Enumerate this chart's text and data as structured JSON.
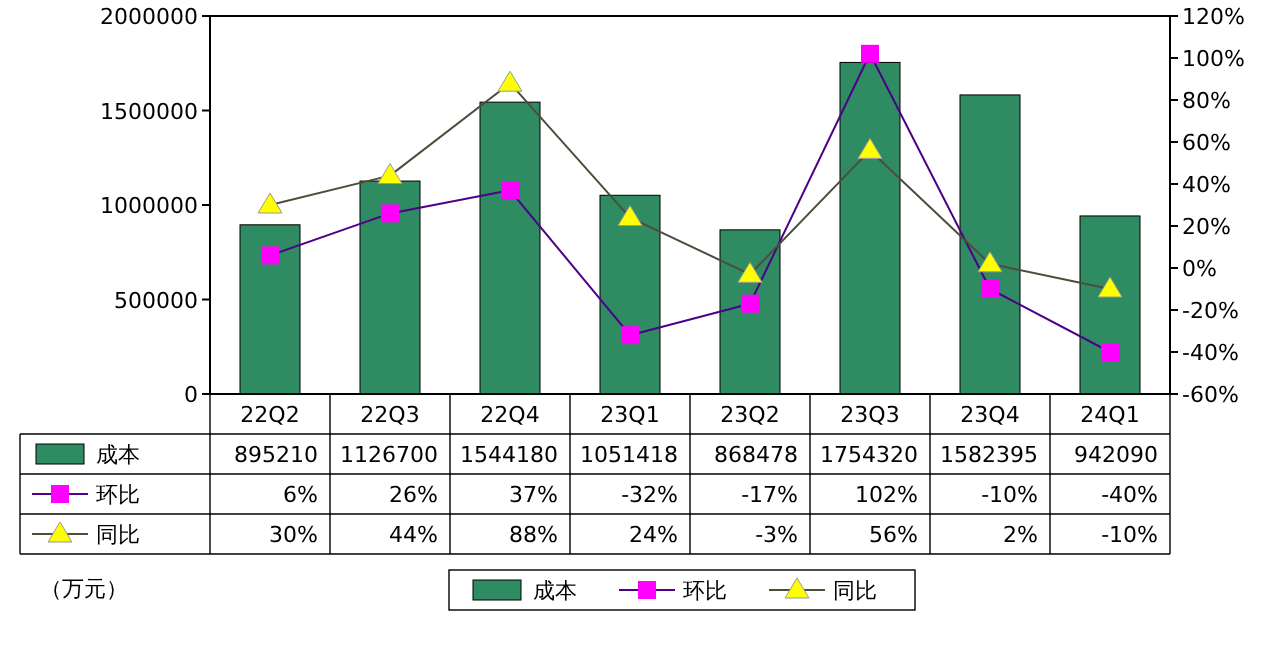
{
  "chart_data": {
    "type": "bar",
    "categories": [
      "22Q2",
      "22Q3",
      "22Q4",
      "23Q1",
      "23Q2",
      "23Q3",
      "23Q4",
      "24Q1"
    ],
    "series": [
      {
        "name": "成本",
        "color": "#2e8b62",
        "values": [
          895210,
          1126700,
          1544180,
          1051418,
          868478,
          1754320,
          1582395,
          942090
        ],
        "value_labels": [
          "895210",
          "1126700",
          "1544180",
          "1051418",
          "868478",
          "1754320",
          "1582395",
          "942090"
        ]
      },
      {
        "name": "环比",
        "type": "line",
        "axis": "y2",
        "color": "#ff00ff",
        "marker": "square",
        "values": [
          6,
          26,
          37,
          -32,
          -17,
          102,
          -10,
          -40
        ],
        "value_labels": [
          "6%",
          "26%",
          "37%",
          "-32%",
          "-17%",
          "102%",
          "-10%",
          "-40%"
        ]
      },
      {
        "name": "同比",
        "type": "line",
        "axis": "y2",
        "color": "#ffff00",
        "marker": "triangle",
        "values": [
          30,
          44,
          88,
          24,
          -3,
          56,
          2,
          -10
        ],
        "value_labels": [
          "30%",
          "44%",
          "88%",
          "24%",
          "-3%",
          "56%",
          "2%",
          "-10%"
        ]
      }
    ],
    "ylim": [
      0,
      2000000
    ],
    "yticks": [
      0,
      500000,
      1000000,
      1500000,
      2000000
    ],
    "y2lim": [
      -60,
      120
    ],
    "y2ticks": [
      {
        "value": -60,
        "label": "-60%"
      },
      {
        "value": -40,
        "label": "-40%"
      },
      {
        "value": -20,
        "label": "-20%"
      },
      {
        "value": 0,
        "label": "0%"
      },
      {
        "value": 20,
        "label": "20%"
      },
      {
        "value": 40,
        "label": "40%"
      },
      {
        "value": 60,
        "label": "60%"
      },
      {
        "value": 80,
        "label": "80%"
      },
      {
        "value": 100,
        "label": "100%"
      },
      {
        "value": 120,
        "label": "120%"
      }
    ],
    "legend": "bottom",
    "grid": false,
    "annotations": [
      "（万元）"
    ]
  }
}
